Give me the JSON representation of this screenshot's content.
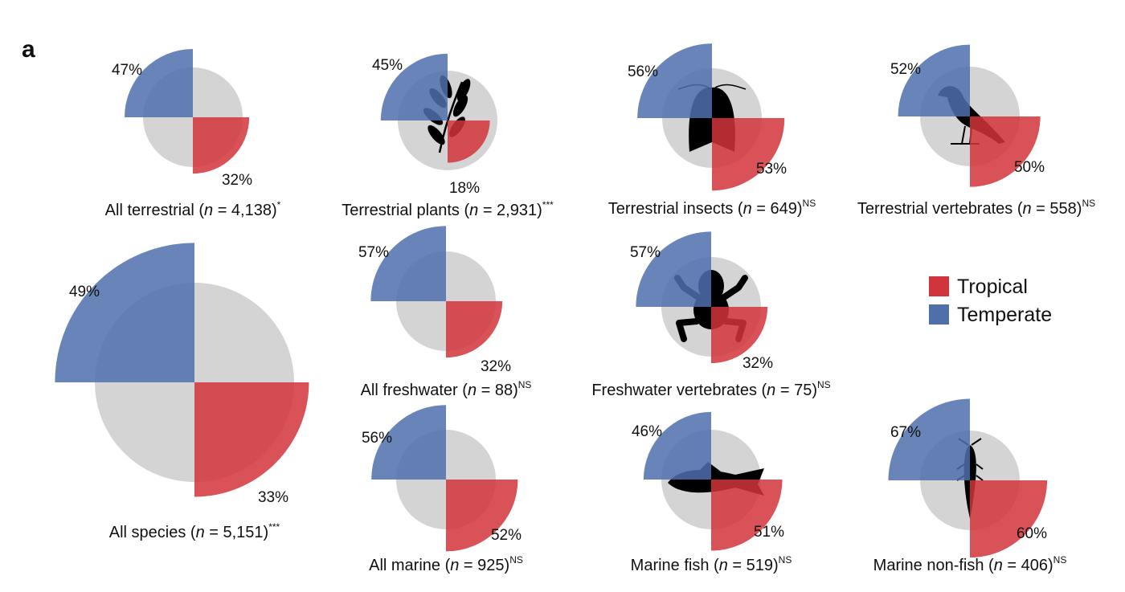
{
  "panel_label": "a",
  "colors": {
    "background_disc": "#d4d4d4",
    "tropical": "#d2343b",
    "temperate": "#4f6fab"
  },
  "legend": {
    "tropical": "Tropical",
    "temperate": "Temperate"
  },
  "chart_data": [
    {
      "type": "pie",
      "caption": "All terrestrial (",
      "n_symbol": "n",
      "n_text": " = 4,138)",
      "significance": "*",
      "temperate_pct": 47,
      "tropical_pct": 32,
      "temperate_label": "47%",
      "tropical_label": "32%",
      "icon": ""
    },
    {
      "type": "pie",
      "caption": "Terrestrial plants (",
      "n_symbol": "n",
      "n_text": " = 2,931)",
      "significance": "***",
      "temperate_pct": 45,
      "tropical_pct": 18,
      "temperate_label": "45%",
      "tropical_label": "18%",
      "icon": "plant-icon"
    },
    {
      "type": "pie",
      "caption": "Terrestrial insects (",
      "n_symbol": "n",
      "n_text": " = 649)",
      "significance": "NS",
      "temperate_pct": 56,
      "tropical_pct": 53,
      "temperate_label": "56%",
      "tropical_label": "53%",
      "icon": "moth-icon"
    },
    {
      "type": "pie",
      "caption": "Terrestrial vertebrates (",
      "n_symbol": "n",
      "n_text": " = 558)",
      "significance": "NS",
      "temperate_pct": 52,
      "tropical_pct": 50,
      "temperate_label": "52%",
      "tropical_label": "50%",
      "icon": "bird-icon"
    },
    {
      "type": "pie",
      "caption": "All species (",
      "n_symbol": "n",
      "n_text": " = 5,151)",
      "significance": "***",
      "temperate_pct": 49,
      "tropical_pct": 33,
      "temperate_label": "49%",
      "tropical_label": "33%",
      "icon": ""
    },
    {
      "type": "pie",
      "caption": "All freshwater (",
      "n_symbol": "n",
      "n_text": " = 88)",
      "significance": "NS",
      "temperate_pct": 57,
      "tropical_pct": 32,
      "temperate_label": "57%",
      "tropical_label": "32%",
      "icon": ""
    },
    {
      "type": "pie",
      "caption": "Freshwater vertebrates (",
      "n_symbol": "n",
      "n_text": " = 75)",
      "significance": "NS",
      "temperate_pct": 57,
      "tropical_pct": 32,
      "temperate_label": "57%",
      "tropical_label": "32%",
      "icon": "frog-icon"
    },
    {
      "type": "pie",
      "caption": "All marine (",
      "n_symbol": "n",
      "n_text": " = 925)",
      "significance": "NS",
      "temperate_pct": 56,
      "tropical_pct": 52,
      "temperate_label": "56%",
      "tropical_label": "52%",
      "icon": ""
    },
    {
      "type": "pie",
      "caption": "Marine fish (",
      "n_symbol": "n",
      "n_text": " = 519)",
      "significance": "NS",
      "temperate_pct": 46,
      "tropical_pct": 51,
      "temperate_label": "46%",
      "tropical_label": "51%",
      "icon": "fish-icon"
    },
    {
      "type": "pie",
      "caption": "Marine non-fish (",
      "n_symbol": "n",
      "n_text": " = 406)",
      "significance": "NS",
      "temperate_pct": 67,
      "tropical_pct": 60,
      "temperate_label": "67%",
      "tropical_label": "60%",
      "icon": "crustacean-icon"
    }
  ]
}
